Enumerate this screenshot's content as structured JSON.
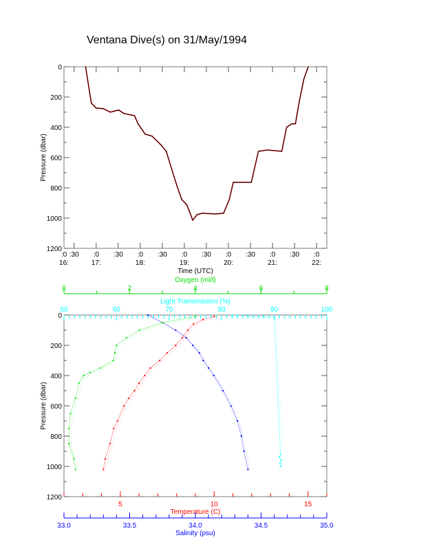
{
  "title": "Ventana Dive(s) on 31/May/1994",
  "chart_data": [
    {
      "type": "line",
      "name": "dive-profile",
      "xlabel": "Time (UTC)",
      "ylabel": "Pressure (dbar)",
      "xlim": [
        16.27,
        22.23
      ],
      "ylim": [
        0,
        1200
      ],
      "yticks": [
        0,
        200,
        400,
        600,
        800,
        1000,
        1200
      ],
      "xticks": [
        {
          "v": 16.0,
          "top": ":0",
          "bottom": "16:"
        },
        {
          "v": 16.5,
          "top": ":30",
          "bottom": ""
        },
        {
          "v": 17.0,
          "top": ":0",
          "bottom": "17:"
        },
        {
          "v": 17.5,
          "top": ":30",
          "bottom": ""
        },
        {
          "v": 18.0,
          "top": ":0",
          "bottom": "18:"
        },
        {
          "v": 18.5,
          "top": ":30",
          "bottom": ""
        },
        {
          "v": 19.0,
          "top": ":0",
          "bottom": "19:"
        },
        {
          "v": 19.5,
          "top": ":30",
          "bottom": ""
        },
        {
          "v": 20.0,
          "top": ":0",
          "bottom": "20:"
        },
        {
          "v": 20.5,
          "top": ":30",
          "bottom": ""
        },
        {
          "v": 21.0,
          "top": ":0",
          "bottom": "21:"
        },
        {
          "v": 21.5,
          "top": ":30",
          "bottom": ""
        },
        {
          "v": 22.0,
          "top": ":0",
          "bottom": "22:"
        }
      ],
      "series": [
        {
          "name": "Pressure",
          "color": "#000000",
          "x": [
            16.76,
            16.89,
            17.0,
            17.16,
            17.32,
            17.51,
            17.63,
            17.87,
            17.95,
            18.11,
            18.27,
            18.46,
            18.59,
            18.71,
            18.83,
            18.94,
            19.06,
            19.19,
            19.29,
            19.41,
            19.7,
            19.89,
            20.02,
            20.11,
            20.33,
            20.52,
            20.59,
            20.68,
            20.89,
            21.21,
            21.32,
            21.44,
            21.52,
            21.6,
            21.71,
            21.81
          ],
          "y": [
            0,
            240,
            273,
            277,
            300,
            286,
            309,
            323,
            377,
            445,
            459,
            514,
            559,
            673,
            786,
            877,
            914,
            1014,
            977,
            968,
            973,
            968,
            877,
            764,
            764,
            764,
            673,
            559,
            550,
            559,
            400,
            377,
            377,
            240,
            82,
            0
          ]
        }
      ]
    },
    {
      "type": "scatter",
      "name": "ctd-profiles",
      "ylabel": "Pressure (dbar)",
      "ylim": [
        0,
        1200
      ],
      "yticks": [
        0,
        200,
        400,
        600,
        800,
        1000,
        1200
      ],
      "axes": [
        {
          "key": "oxygen",
          "label": "Oxygen (ml/l)",
          "color": "#00dd00",
          "position": "top-outer",
          "lim": [
            0,
            8
          ],
          "ticks": [
            0,
            2,
            4,
            6,
            8
          ],
          "minor": 1
        },
        {
          "key": "light",
          "label": "Light Transmission (%)",
          "color": "#00ffff",
          "position": "top-inner",
          "lim": [
            50,
            100
          ],
          "ticks": [
            50,
            60,
            70,
            80,
            90,
            100
          ],
          "minor": 1
        },
        {
          "key": "temp",
          "label": "Temperature (C)",
          "color": "#ff0000",
          "position": "bottom-inner",
          "lim": [
            2,
            16
          ],
          "ticks": [
            5,
            10,
            15
          ],
          "minor": 1
        },
        {
          "key": "sal",
          "label": "Salinity (psu)",
          "color": "#0000ff",
          "position": "bottom-outer",
          "lim": [
            33.0,
            35.0
          ],
          "ticks": [
            "33.0",
            "33.5",
            "34.0",
            "34.5",
            "35.0"
          ],
          "minor": 0.1
        }
      ],
      "series": [
        {
          "name": "Temperature",
          "axis": "temp",
          "color": "#ff0000",
          "p": [
            10,
            30,
            60,
            100,
            150,
            200,
            250,
            300,
            350,
            400,
            450,
            500,
            550,
            600,
            700,
            750,
            850,
            950,
            1020
          ],
          "v": [
            10.0,
            9.4,
            8.9,
            8.6,
            8.3,
            7.95,
            7.5,
            7.1,
            6.6,
            6.3,
            6.0,
            5.75,
            5.45,
            5.2,
            4.85,
            4.65,
            4.45,
            4.2,
            4.1
          ]
        },
        {
          "name": "Salinity",
          "axis": "sal",
          "color": "#0000ff",
          "p": [
            0,
            50,
            100,
            150,
            200,
            250,
            300,
            350,
            400,
            500,
            600,
            700,
            800,
            900,
            1020
          ],
          "v": [
            33.64,
            33.75,
            33.85,
            33.93,
            33.98,
            34.03,
            34.06,
            34.1,
            34.14,
            34.21,
            34.27,
            34.32,
            34.35,
            34.37,
            34.4
          ]
        },
        {
          "name": "Oxygen",
          "axis": "oxygen",
          "color": "#00dd00",
          "p": [
            10,
            50,
            100,
            150,
            200,
            250,
            300,
            350,
            380,
            400,
            450,
            550,
            650,
            750,
            850,
            950,
            1020
          ],
          "v": [
            4.0,
            3.0,
            2.3,
            1.9,
            1.6,
            1.55,
            1.5,
            1.1,
            0.8,
            0.6,
            0.45,
            0.35,
            0.2,
            0.15,
            0.15,
            0.3,
            0.35
          ]
        },
        {
          "name": "Light Transmission",
          "axis": "light",
          "color": "#00ffff",
          "p": [
            0,
            5,
            10,
            15,
            920,
            940,
            960,
            980,
            1000
          ],
          "v": [
            82,
            85,
            88,
            90,
            91.2,
            91.0,
            91.3,
            91.1,
            91.2
          ]
        }
      ]
    }
  ]
}
